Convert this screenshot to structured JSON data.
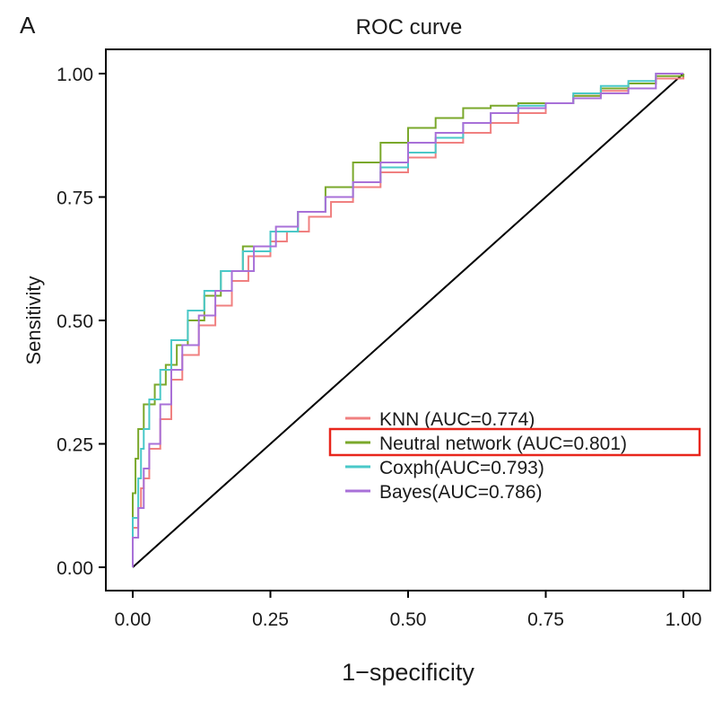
{
  "chart_data": {
    "type": "line",
    "panel_label": "A",
    "title": "ROC curve",
    "xlabel": "1−specificity",
    "ylabel": "Sensitivity",
    "xlim": [
      0,
      1
    ],
    "ylim": [
      0,
      1
    ],
    "x_ticks": [
      "0.00",
      "0.25",
      "0.50",
      "0.75",
      "1.00"
    ],
    "y_ticks": [
      "0.00",
      "0.25",
      "0.50",
      "0.75",
      "1.00"
    ],
    "grid": false,
    "legend_position": "bottom-right",
    "highlighted_legend_entry": "Neutral network (AUC=0.801)",
    "highlight_color": "#e8261c",
    "diagonal_reference": {
      "x": [
        0,
        1
      ],
      "y": [
        0,
        1
      ],
      "color": "#000000"
    },
    "series": [
      {
        "name": "KNN",
        "legend_label": "KNN (AUC=0.774)",
        "auc": 0.774,
        "color": "#f08080",
        "x": [
          0,
          0,
          0.01,
          0.015,
          0.02,
          0.03,
          0.05,
          0.07,
          0.09,
          0.12,
          0.15,
          0.18,
          0.21,
          0.25,
          0.28,
          0.32,
          0.36,
          0.4,
          0.45,
          0.5,
          0.55,
          0.6,
          0.65,
          0.7,
          0.75,
          0.8,
          0.85,
          0.9,
          0.95,
          1
        ],
        "y": [
          0,
          0.08,
          0.12,
          0.16,
          0.18,
          0.24,
          0.3,
          0.38,
          0.43,
          0.49,
          0.53,
          0.58,
          0.63,
          0.66,
          0.68,
          0.71,
          0.74,
          0.77,
          0.8,
          0.83,
          0.86,
          0.88,
          0.9,
          0.92,
          0.94,
          0.955,
          0.965,
          0.98,
          0.99,
          1
        ]
      },
      {
        "name": "Neutral network",
        "legend_label": "Neutral network (AUC=0.801)",
        "auc": 0.801,
        "color": "#7aa82b",
        "x": [
          0,
          0,
          0.005,
          0.01,
          0.02,
          0.04,
          0.06,
          0.08,
          0.1,
          0.13,
          0.16,
          0.2,
          0.25,
          0.3,
          0.35,
          0.4,
          0.45,
          0.5,
          0.55,
          0.6,
          0.65,
          0.7,
          0.75,
          0.8,
          0.85,
          0.9,
          0.95,
          1
        ],
        "y": [
          0,
          0.15,
          0.22,
          0.28,
          0.33,
          0.37,
          0.41,
          0.45,
          0.5,
          0.55,
          0.6,
          0.65,
          0.68,
          0.72,
          0.77,
          0.82,
          0.86,
          0.89,
          0.91,
          0.93,
          0.935,
          0.94,
          0.94,
          0.955,
          0.97,
          0.98,
          0.995,
          1
        ]
      },
      {
        "name": "Coxph",
        "legend_label": "Coxph(AUC=0.793)",
        "auc": 0.793,
        "color": "#4ac8c8",
        "x": [
          0,
          0,
          0.01,
          0.015,
          0.02,
          0.03,
          0.05,
          0.07,
          0.1,
          0.13,
          0.16,
          0.2,
          0.25,
          0.3,
          0.35,
          0.4,
          0.45,
          0.5,
          0.55,
          0.6,
          0.65,
          0.7,
          0.75,
          0.8,
          0.85,
          0.9,
          0.95,
          1
        ],
        "y": [
          0,
          0.1,
          0.18,
          0.24,
          0.28,
          0.34,
          0.4,
          0.46,
          0.52,
          0.56,
          0.6,
          0.64,
          0.68,
          0.72,
          0.75,
          0.78,
          0.81,
          0.84,
          0.87,
          0.9,
          0.92,
          0.935,
          0.94,
          0.96,
          0.975,
          0.985,
          1,
          1
        ]
      },
      {
        "name": "Bayes",
        "legend_label": "Bayes(AUC=0.786)",
        "auc": 0.786,
        "color": "#a870d8",
        "x": [
          0,
          0,
          0.01,
          0.02,
          0.03,
          0.05,
          0.07,
          0.09,
          0.12,
          0.15,
          0.18,
          0.22,
          0.26,
          0.3,
          0.35,
          0.4,
          0.45,
          0.5,
          0.55,
          0.6,
          0.65,
          0.7,
          0.75,
          0.8,
          0.85,
          0.9,
          0.95,
          1
        ],
        "y": [
          0,
          0.06,
          0.12,
          0.2,
          0.25,
          0.33,
          0.4,
          0.45,
          0.51,
          0.56,
          0.6,
          0.65,
          0.69,
          0.72,
          0.75,
          0.78,
          0.82,
          0.86,
          0.88,
          0.9,
          0.92,
          0.93,
          0.94,
          0.95,
          0.96,
          0.97,
          1,
          1
        ]
      }
    ]
  }
}
